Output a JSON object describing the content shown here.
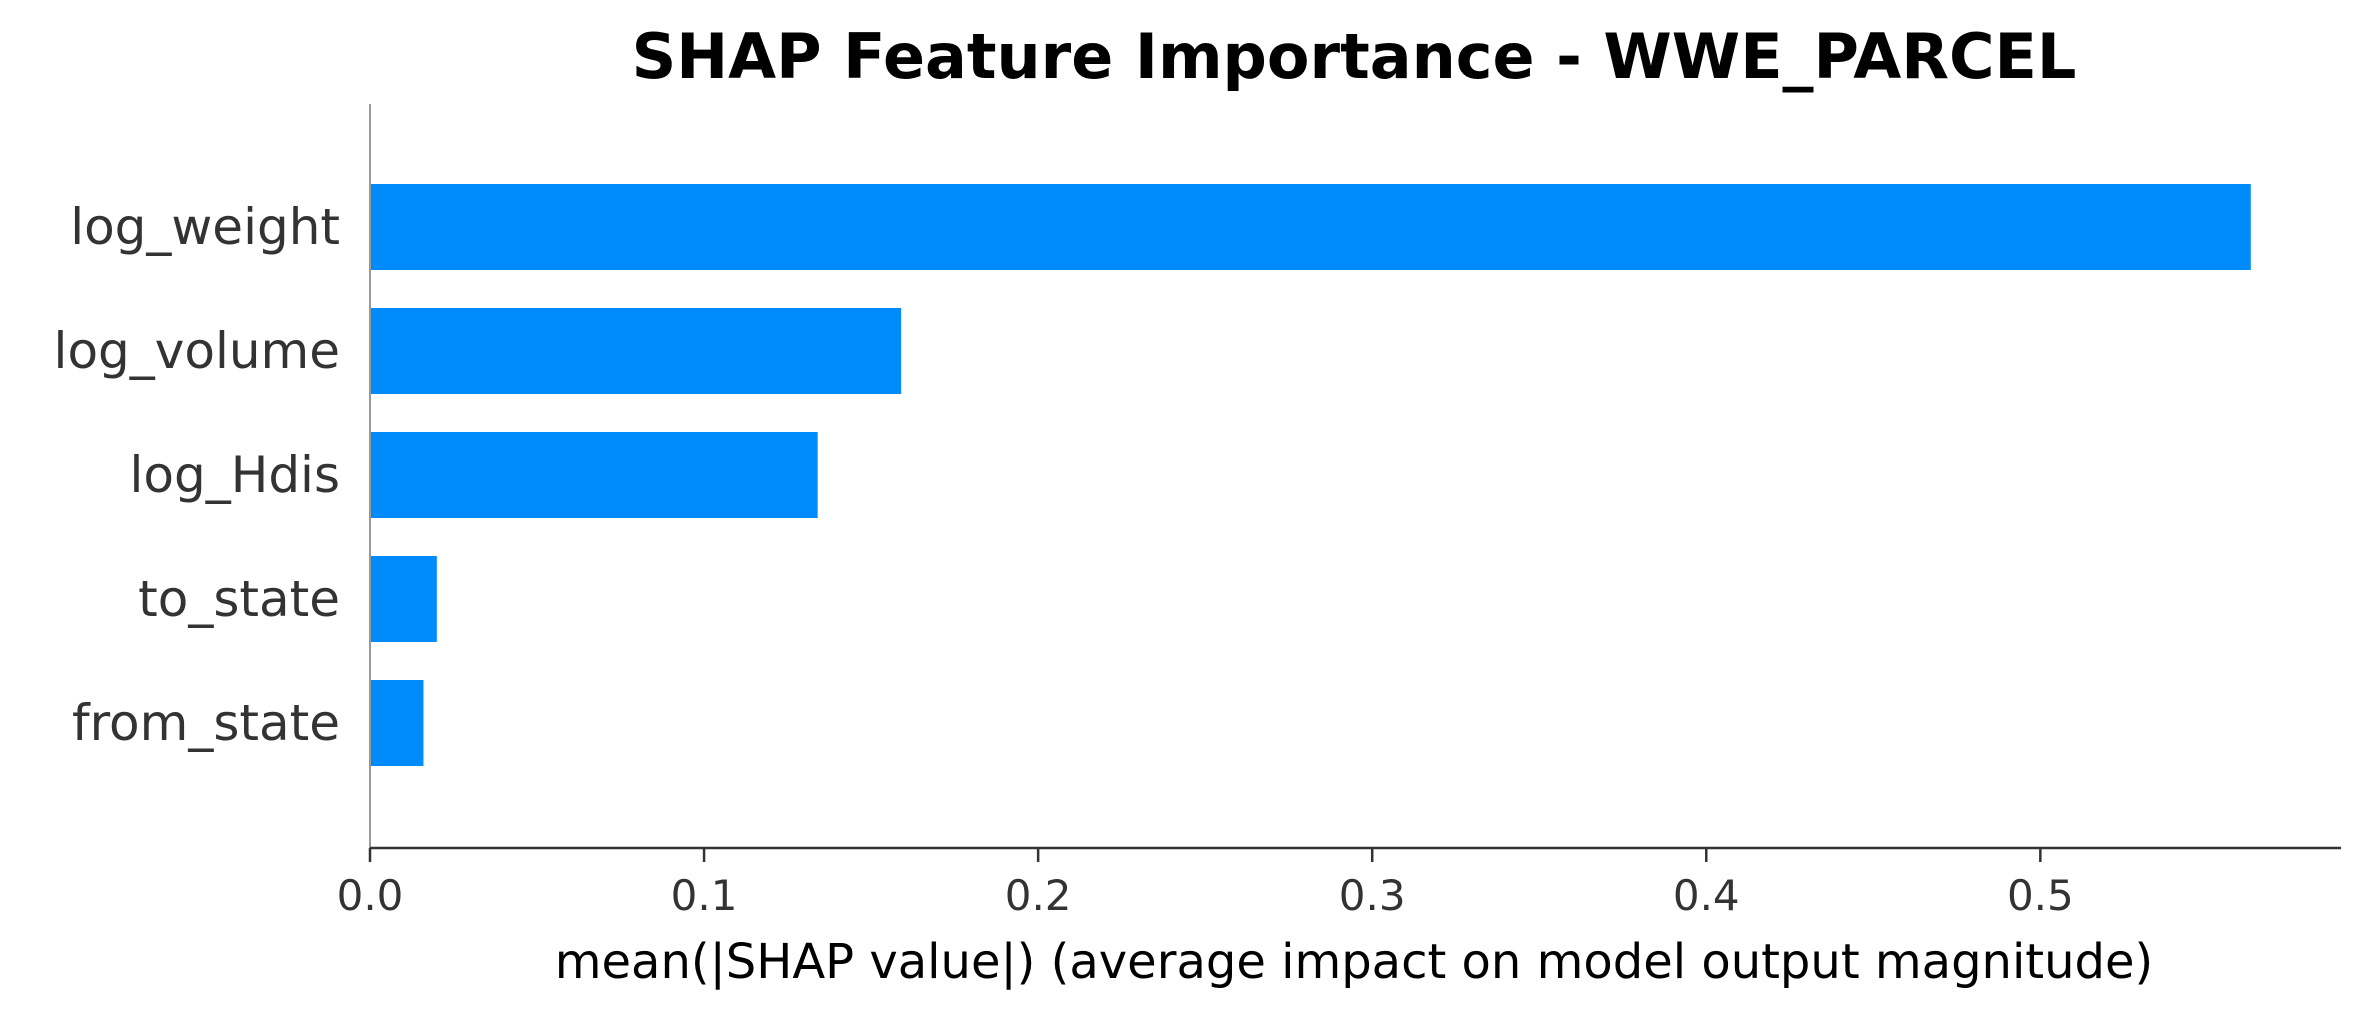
{
  "chart_data": {
    "type": "bar",
    "orientation": "horizontal",
    "title": "SHAP Feature Importance - WWE_PARCEL",
    "xlabel": "mean(|SHAP value|) (average impact on model output magnitude)",
    "ylabel": "",
    "categories": [
      "log_weight",
      "log_volume",
      "log_Hdis",
      "to_state",
      "from_state"
    ],
    "values": [
      0.563,
      0.159,
      0.134,
      0.02,
      0.016
    ],
    "xlim": [
      0,
      0.59
    ],
    "xticks": [
      0.0,
      0.1,
      0.2,
      0.3,
      0.4,
      0.5
    ],
    "xtick_labels": [
      "0.0",
      "0.1",
      "0.2",
      "0.3",
      "0.4",
      "0.5"
    ],
    "bar_color": "#008bfb",
    "grid": false,
    "legend": "none"
  }
}
